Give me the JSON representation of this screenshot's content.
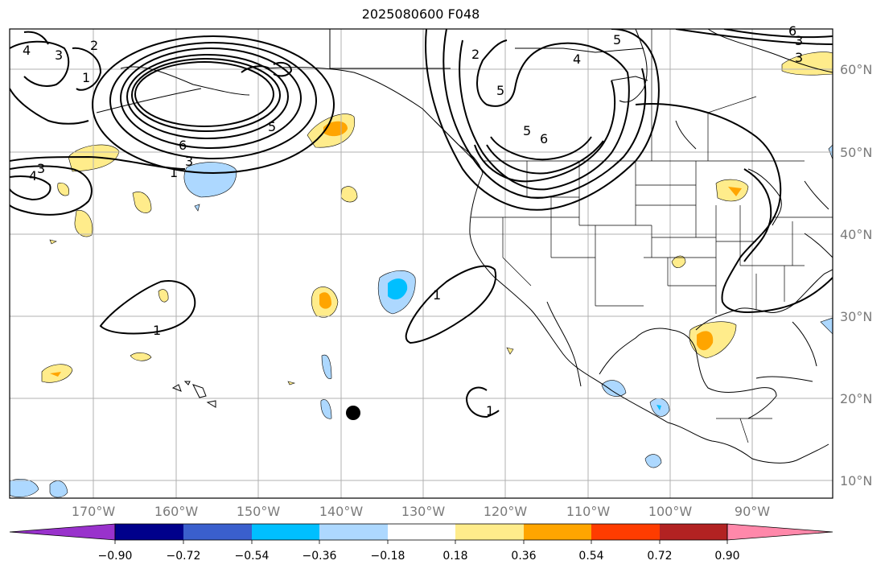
{
  "title": "2025080600 F048",
  "lat_labels": [
    "60°N",
    "50°N",
    "40°N",
    "30°N",
    "20°N",
    "10°N"
  ],
  "lon_labels": [
    "170°W",
    "160°W",
    "150°W",
    "140°W",
    "130°W",
    "120°W",
    "110°W",
    "100°W",
    "90°W"
  ],
  "contour_labels": [
    "4",
    "3",
    "2",
    "1",
    "5",
    "6",
    "5",
    "6",
    "3",
    "1",
    "4",
    "3",
    "2",
    "5",
    "4",
    "3",
    "5",
    "6",
    "1",
    "1",
    "1",
    "3"
  ],
  "colorbar": {
    "labels": [
      "−0.90",
      "−0.72",
      "−0.54",
      "−0.36",
      "−0.18",
      "0.18",
      "0.36",
      "0.54",
      "0.72",
      "0.90"
    ],
    "colors": [
      "#9932cc",
      "#00008b",
      "#3a5fcd",
      "#00bfff",
      "#add8ff",
      "#ffffff",
      "#ffec8b",
      "#ffa500",
      "#ff3c00",
      "#b22222",
      "#ff88aa"
    ]
  },
  "fill_colors": {
    "light_blue": "#add8ff",
    "blue": "#00bfff",
    "yellow": "#ffec8b",
    "orange": "#ffa500"
  },
  "marker": "storm-center-dot"
}
